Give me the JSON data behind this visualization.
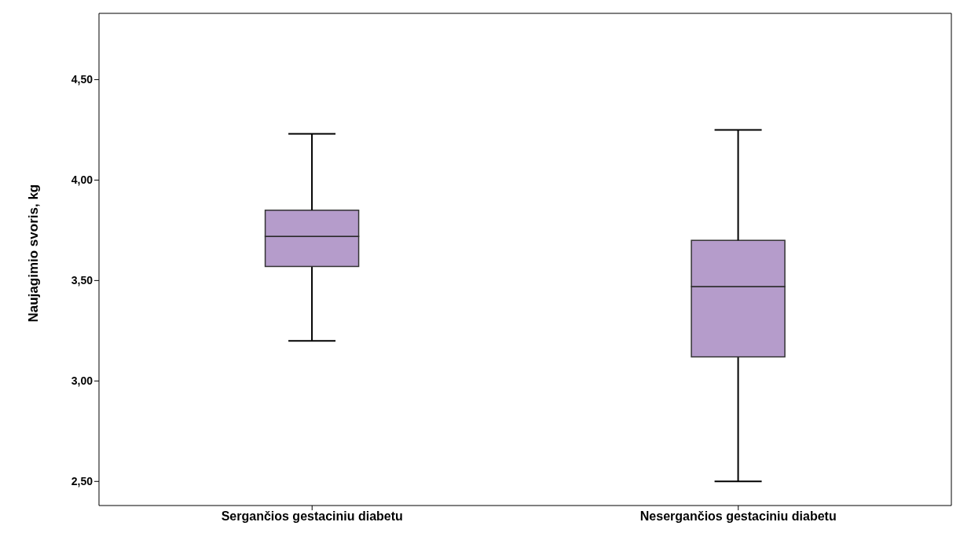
{
  "chart_data": {
    "type": "box",
    "ylabel": "Naujagimio svoris, kg",
    "categories": [
      "Sergančios gestaciniu diabetu",
      "Nesergančios gestaciniu diabetu"
    ],
    "boxes": [
      {
        "low": 3.2,
        "q1": 3.57,
        "median": 3.72,
        "q3": 3.85,
        "high": 4.23
      },
      {
        "low": 2.5,
        "q1": 3.12,
        "median": 3.47,
        "q3": 3.7,
        "high": 4.25
      }
    ],
    "color": "#b59ccb",
    "ylim": [
      2.38,
      4.83
    ],
    "yticks": [
      {
        "value": 2.5,
        "label": "2,50"
      },
      {
        "value": 3,
        "label": "3,00"
      },
      {
        "value": 3.5,
        "label": "3,50"
      },
      {
        "value": 4,
        "label": "4,00"
      },
      {
        "value": 4.5,
        "label": "4,50"
      }
    ]
  }
}
